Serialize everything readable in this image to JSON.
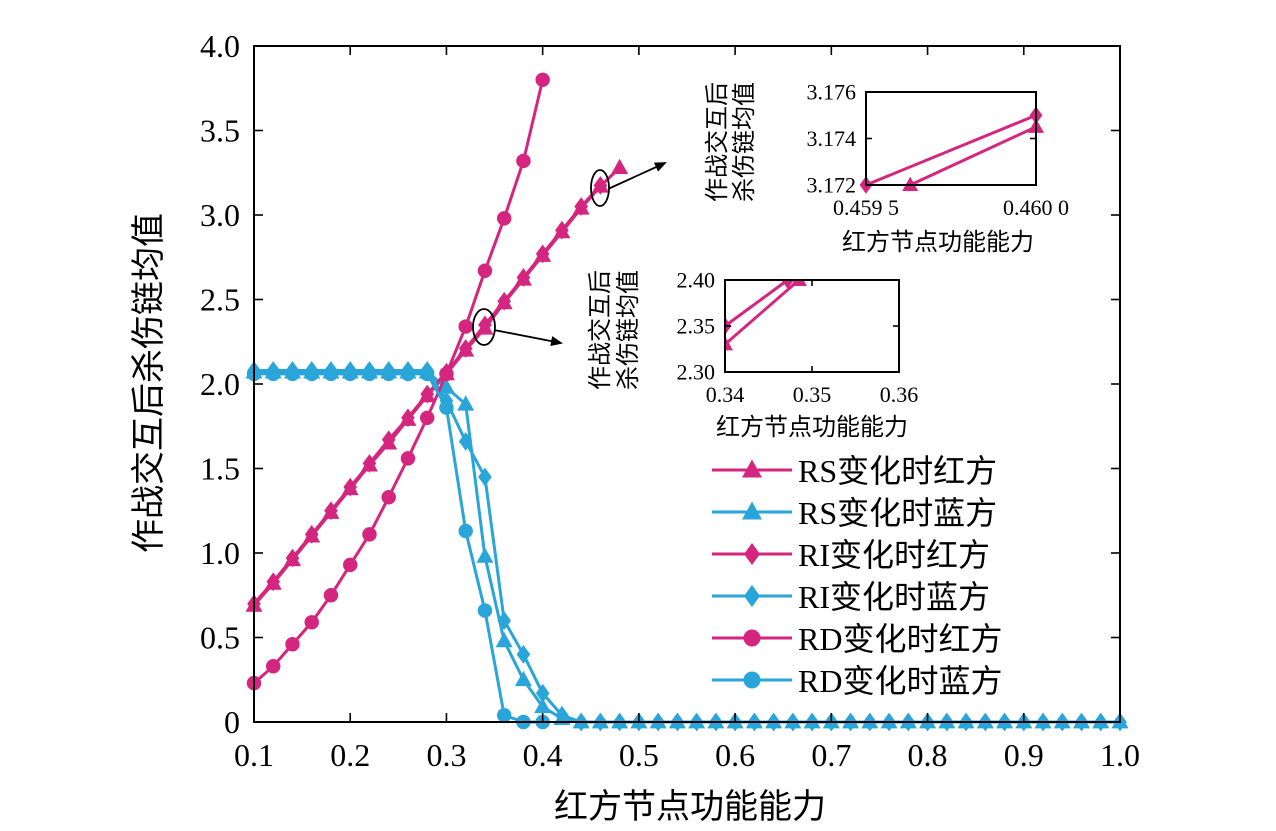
{
  "chart_data": [
    {
      "type": "line",
      "xlabel": "红方节点功能能力",
      "ylabel": "作战交互后杀伤链均值",
      "xlim": [
        0.1,
        1.0
      ],
      "ylim": [
        0,
        4.0
      ],
      "xticks": [
        "0.1",
        "0.2",
        "0.3",
        "0.4",
        "0.5",
        "0.6",
        "0.7",
        "0.8",
        "0.9",
        "1.0"
      ],
      "yticks": [
        "0",
        "0.5",
        "1.0",
        "1.5",
        "2.0",
        "2.5",
        "3.0",
        "3.5",
        "4.0"
      ],
      "legend_position": "bottom-right",
      "colors": {
        "red": "#d4267e",
        "blue": "#29a5d9"
      },
      "series": [
        {
          "name": "RS变化时红方",
          "marker": "triangle",
          "color": "#d4267e",
          "x": [
            0.1,
            0.12,
            0.14,
            0.16,
            0.18,
            0.2,
            0.22,
            0.24,
            0.26,
            0.28,
            0.3,
            0.32,
            0.34,
            0.36,
            0.38,
            0.4,
            0.42,
            0.44,
            0.46,
            0.48
          ],
          "y": [
            0.69,
            0.82,
            0.96,
            1.1,
            1.24,
            1.38,
            1.52,
            1.65,
            1.79,
            1.93,
            2.06,
            2.2,
            2.33,
            2.48,
            2.62,
            2.76,
            2.9,
            3.04,
            3.17,
            3.28
          ]
        },
        {
          "name": "RS变化时蓝方",
          "marker": "triangle",
          "color": "#29a5d9",
          "x": [
            0.1,
            0.12,
            0.14,
            0.16,
            0.18,
            0.2,
            0.22,
            0.24,
            0.26,
            0.28,
            0.3,
            0.32,
            0.34,
            0.36,
            0.38,
            0.4,
            0.42,
            0.44,
            0.46,
            0.48,
            0.5,
            0.52,
            0.54,
            0.56,
            0.58,
            0.6,
            0.62,
            0.64,
            0.66,
            0.68,
            0.7,
            0.72,
            0.74,
            0.76,
            0.78,
            0.8,
            0.82,
            0.84,
            0.86,
            0.88,
            0.9,
            0.92,
            0.94,
            0.96,
            0.98,
            1.0
          ],
          "y": [
            2.07,
            2.07,
            2.07,
            2.07,
            2.07,
            2.07,
            2.07,
            2.07,
            2.07,
            2.07,
            1.98,
            1.88,
            0.98,
            0.48,
            0.25,
            0.09,
            0.02,
            0,
            0,
            0,
            0,
            0,
            0,
            0,
            0,
            0,
            0,
            0,
            0,
            0,
            0,
            0,
            0,
            0,
            0,
            0,
            0,
            0,
            0,
            0,
            0,
            0,
            0,
            0,
            0,
            0
          ]
        },
        {
          "name": "RI变化时红方",
          "marker": "diamond",
          "color": "#d4267e",
          "x": [
            0.1,
            0.12,
            0.14,
            0.16,
            0.18,
            0.2,
            0.22,
            0.24,
            0.26,
            0.28,
            0.3,
            0.32,
            0.34,
            0.36,
            0.38,
            0.4,
            0.42,
            0.44,
            0.46
          ],
          "y": [
            0.7,
            0.83,
            0.97,
            1.11,
            1.25,
            1.39,
            1.53,
            1.67,
            1.8,
            1.94,
            2.07,
            2.21,
            2.35,
            2.49,
            2.63,
            2.77,
            2.91,
            3.05,
            3.175
          ]
        },
        {
          "name": "RI变化时蓝方",
          "marker": "diamond",
          "color": "#29a5d9",
          "x": [
            0.1,
            0.12,
            0.14,
            0.16,
            0.18,
            0.2,
            0.22,
            0.24,
            0.26,
            0.28,
            0.3,
            0.32,
            0.34,
            0.36,
            0.38,
            0.4,
            0.42,
            0.44,
            0.46,
            0.48,
            0.5,
            0.52,
            0.54,
            0.56,
            0.58,
            0.6,
            0.62,
            0.64,
            0.66,
            0.68,
            0.7,
            0.72,
            0.74,
            0.76,
            0.78,
            0.8,
            0.82,
            0.84,
            0.86,
            0.88,
            0.9,
            0.92,
            0.94,
            0.96,
            0.98,
            1.0
          ],
          "y": [
            2.08,
            2.08,
            2.08,
            2.08,
            2.08,
            2.08,
            2.08,
            2.08,
            2.08,
            2.08,
            1.9,
            1.66,
            1.45,
            0.6,
            0.4,
            0.17,
            0.04,
            0,
            0,
            0,
            0,
            0,
            0,
            0,
            0,
            0,
            0,
            0,
            0,
            0,
            0,
            0,
            0,
            0,
            0,
            0,
            0,
            0,
            0,
            0,
            0,
            0,
            0,
            0,
            0,
            0
          ]
        },
        {
          "name": "RD变化时红方",
          "marker": "circle",
          "color": "#d4267e",
          "x": [
            0.1,
            0.12,
            0.14,
            0.16,
            0.18,
            0.2,
            0.22,
            0.24,
            0.26,
            0.28,
            0.3,
            0.32,
            0.34,
            0.36,
            0.38,
            0.4
          ],
          "y": [
            0.23,
            0.33,
            0.46,
            0.59,
            0.75,
            0.93,
            1.11,
            1.33,
            1.56,
            1.8,
            2.06,
            2.34,
            2.67,
            2.98,
            3.32,
            3.8
          ]
        },
        {
          "name": "RD变化时蓝方",
          "marker": "circle",
          "color": "#29a5d9",
          "x": [
            0.1,
            0.12,
            0.14,
            0.16,
            0.18,
            0.2,
            0.22,
            0.24,
            0.26,
            0.28,
            0.3,
            0.32,
            0.34,
            0.36,
            0.38,
            0.4
          ],
          "y": [
            2.06,
            2.06,
            2.06,
            2.06,
            2.06,
            2.06,
            2.06,
            2.06,
            2.06,
            2.06,
            1.86,
            1.13,
            0.66,
            0.04,
            0.0,
            0.0
          ]
        }
      ]
    },
    {
      "type": "line",
      "inset": "upper",
      "xlabel": "红方节点功能能力",
      "ylabel": [
        "作战交互后",
        "杀伤链均值"
      ],
      "xlim": [
        0.4595,
        0.46
      ],
      "ylim": [
        3.172,
        3.176
      ],
      "xticks": [
        "0.459 5",
        "0.460 0"
      ],
      "yticks": [
        "3.172",
        "3.174",
        "3.176"
      ],
      "series": [
        {
          "ref": "RI变化时红方",
          "marker": "diamond",
          "color": "#d4267e",
          "x": [
            0.4595,
            0.46
          ],
          "y": [
            3.172,
            3.175
          ]
        },
        {
          "ref": "RS变化时红方",
          "marker": "triangle",
          "color": "#d4267e",
          "x": [
            0.45963,
            0.46
          ],
          "y": [
            3.172,
            3.1745
          ]
        }
      ]
    },
    {
      "type": "line",
      "inset": "lower",
      "xlabel": "红方节点功能能力",
      "ylabel": [
        "作战交互后",
        "杀伤链均值"
      ],
      "xlim": [
        0.34,
        0.36
      ],
      "ylim": [
        2.3,
        2.4
      ],
      "xticks": [
        "0.34",
        "0.35",
        "0.36"
      ],
      "yticks": [
        "2.30",
        "2.35",
        "2.40"
      ],
      "series": [
        {
          "ref": "RI变化时红方",
          "marker": "diamond",
          "color": "#d4267e",
          "x": [
            0.34,
            0.3472
          ],
          "y": [
            2.35,
            2.4
          ]
        },
        {
          "ref": "RS变化时红方",
          "marker": "triangle",
          "color": "#d4267e",
          "x": [
            0.34,
            0.3485
          ],
          "y": [
            2.33,
            2.4
          ]
        }
      ]
    }
  ]
}
